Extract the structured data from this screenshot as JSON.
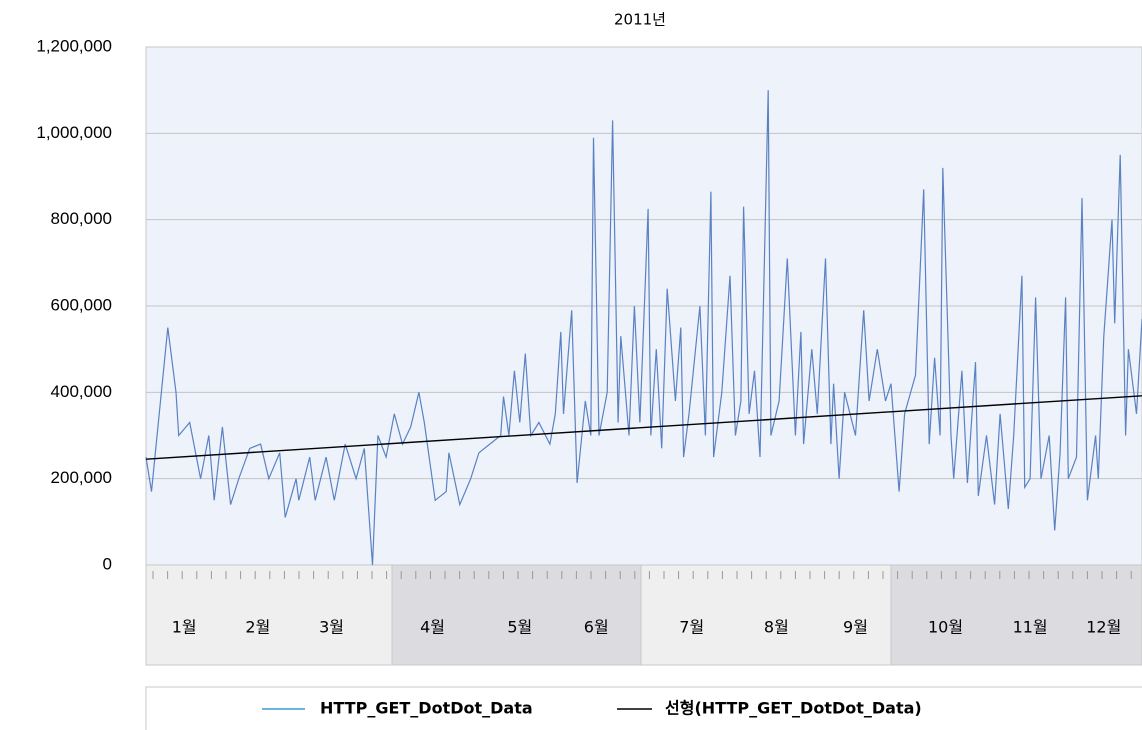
{
  "chart_data": {
    "type": "line",
    "title": "2011년",
    "ylim": [
      0,
      1200000
    ],
    "yticks": [
      0,
      {
        "value": 200000,
        "label": "200,000"
      },
      {
        "value": 400000,
        "label": "400,000"
      },
      {
        "value": 600000,
        "label": "600,000"
      },
      {
        "value": 800000,
        "label": "800,000"
      },
      {
        "value": 1000000,
        "label": "1,000,000"
      },
      {
        "value": 1200000,
        "label": "1,200,000"
      }
    ],
    "xlim": [
      0,
      365
    ],
    "xticks": [
      {
        "value": 14,
        "label": "1월"
      },
      {
        "value": 41,
        "label": "2월"
      },
      {
        "value": 68,
        "label": "3월"
      },
      {
        "value": 105,
        "label": "4월"
      },
      {
        "value": 137,
        "label": "5월"
      },
      {
        "value": 165,
        "label": "6월"
      },
      {
        "value": 200,
        "label": "7월"
      },
      {
        "value": 231,
        "label": "8월"
      },
      {
        "value": 260,
        "label": "9월"
      },
      {
        "value": 293,
        "label": "10월"
      },
      {
        "value": 324,
        "label": "11월"
      },
      {
        "value": 351,
        "label": "12월"
      }
    ],
    "grid": true,
    "legend": "bottom",
    "series": [
      {
        "name": "HTTP_GET_DotDot_Data",
        "color": "#5a82c3",
        "x": [
          0,
          2,
          8,
          11,
          12,
          16,
          20,
          23,
          25,
          28,
          31,
          34,
          38,
          42,
          45,
          49,
          51,
          55,
          56,
          60,
          62,
          66,
          69,
          73,
          77,
          80,
          83,
          85,
          88,
          91,
          94,
          97,
          100,
          102,
          106,
          110,
          111,
          115,
          119,
          122,
          126,
          130,
          131,
          133,
          135,
          137,
          139,
          141,
          144,
          148,
          150,
          152,
          153,
          156,
          158,
          161,
          163,
          164,
          166,
          169,
          171,
          173,
          174,
          177,
          179,
          181,
          184,
          185,
          187,
          189,
          191,
          194,
          196,
          197,
          199,
          203,
          205,
          207,
          208,
          211,
          214,
          216,
          218,
          219,
          221,
          223,
          225,
          228,
          229,
          232,
          235,
          238,
          240,
          241,
          244,
          246,
          249,
          251,
          252,
          254,
          256,
          260,
          263,
          265,
          268,
          271,
          273,
          276,
          278,
          282,
          285,
          287,
          289,
          291,
          292,
          295,
          296,
          299,
          301,
          304,
          305,
          308,
          311,
          313,
          316,
          318,
          321,
          322,
          324,
          326,
          328,
          331,
          333,
          335,
          337,
          338,
          341,
          343,
          345,
          348,
          349,
          351,
          354,
          355,
          357,
          359,
          360,
          363,
          365
        ],
        "values": [
          250000,
          170000,
          550000,
          400000,
          300000,
          330000,
          200000,
          300000,
          150000,
          320000,
          140000,
          200000,
          270000,
          280000,
          200000,
          260000,
          110000,
          200000,
          150000,
          250000,
          150000,
          250000,
          150000,
          280000,
          200000,
          270000,
          0,
          300000,
          250000,
          350000,
          280000,
          320000,
          400000,
          330000,
          150000,
          170000,
          260000,
          140000,
          200000,
          260000,
          280000,
          300000,
          390000,
          300000,
          450000,
          330000,
          490000,
          300000,
          330000,
          280000,
          350000,
          540000,
          350000,
          590000,
          190000,
          380000,
          300000,
          990000,
          300000,
          400000,
          1030000,
          330000,
          530000,
          300000,
          600000,
          330000,
          825000,
          300000,
          500000,
          270000,
          640000,
          380000,
          550000,
          250000,
          350000,
          600000,
          300000,
          865000,
          250000,
          400000,
          670000,
          300000,
          380000,
          830000,
          350000,
          450000,
          250000,
          1100000,
          300000,
          380000,
          710000,
          300000,
          540000,
          280000,
          500000,
          350000,
          710000,
          280000,
          420000,
          200000,
          400000,
          300000,
          590000,
          380000,
          500000,
          380000,
          420000,
          170000,
          350000,
          440000,
          870000,
          280000,
          480000,
          300000,
          920000,
          300000,
          200000,
          450000,
          190000,
          470000,
          160000,
          300000,
          140000,
          350000,
          130000,
          300000,
          670000,
          180000,
          200000,
          620000,
          200000,
          300000,
          80000,
          260000,
          620000,
          200000,
          250000,
          850000,
          150000,
          300000,
          200000,
          530000,
          800000,
          560000,
          950000,
          300000,
          500000,
          350000,
          570000
        ]
      },
      {
        "name": "선형(HTTP_GET_DotDot_Data)",
        "color": "#000000",
        "x": [
          0,
          365
        ],
        "values": [
          245000,
          392000
        ]
      }
    ]
  }
}
